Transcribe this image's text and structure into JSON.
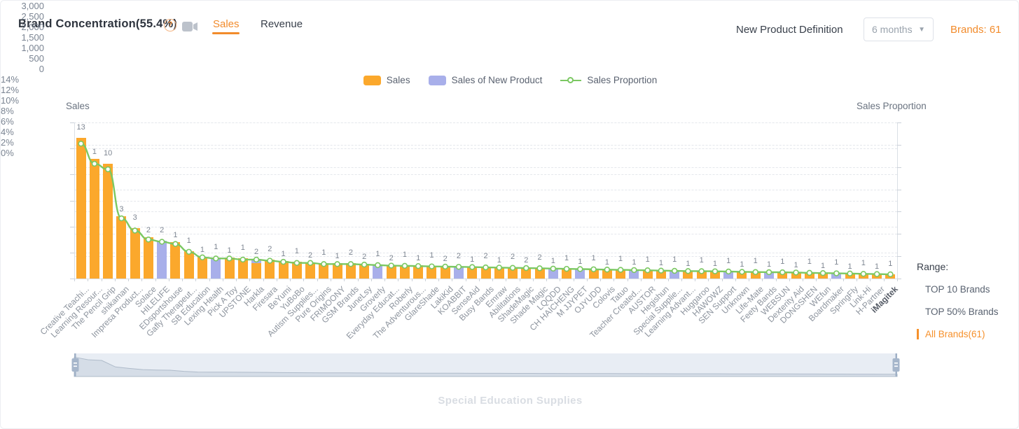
{
  "header": {
    "title": "Brand Concentration(55.4%)",
    "help_glyph": "?",
    "tabs": [
      {
        "label": "Sales",
        "active": true
      },
      {
        "label": "Revenue",
        "active": false
      }
    ],
    "new_product_definition_label": "New Product Definition",
    "dropdown_value": "6 months",
    "dropdown_caret": "▼",
    "brands_count_label": "Brands: 61"
  },
  "legend": [
    {
      "label": "Sales",
      "type": "bar",
      "color": "#FBA82C"
    },
    {
      "label": "Sales of New Product",
      "type": "bar",
      "color": "#A8AFEA"
    },
    {
      "label": "Sales Proportion",
      "type": "line",
      "color": "#7BC862"
    }
  ],
  "chart_data": {
    "type": "bar",
    "title": "",
    "ylabel_left": "Sales",
    "ylabel_right": "Sales Proportion",
    "ylim_left": [
      0,
      3000
    ],
    "ylim_right": [
      0,
      14
    ],
    "y_ticks_left": [
      "3,000",
      "2,500",
      "2,000",
      "1,500",
      "1,000",
      "500",
      "0"
    ],
    "y_ticks_right": [
      "14%",
      "12%",
      "10%",
      "8%",
      "6%",
      "4%",
      "2%",
      "0%"
    ],
    "grid": "dashed-horizontal",
    "legend_position": "top-center",
    "emphasized_category": "iMagitek",
    "categories": [
      "Creative Teachi...",
      "Learning Resour...",
      "The Pencil Grip",
      "shikaman",
      "Impresa Product...",
      "Solace",
      "HILELIFE",
      "EDsportshouse",
      "Gafly Therapeut...",
      "SB Education",
      "Lexing Health",
      "Pick A Toy",
      "UPSTONE",
      "Harkla",
      "Firesara",
      "BeYumi",
      "YuBoBo",
      "Autism Supplies...",
      "Pure Origins",
      "FRIMOONY",
      "GSM Brands",
      "JuneLsy",
      "Groverly",
      "Everyday Educat...",
      "Roberly",
      "The Adventurous...",
      "GlareShade",
      "LakiKid",
      "KOABBIT",
      "SenseAid",
      "Busy Bands",
      "Emraw",
      "Abilitations",
      "ShadeMagic",
      "Shade Magic",
      "LQQDD",
      "CH HAICHENG",
      "M JJYPET",
      "OJYUDD",
      "Colovis",
      "Tatuo",
      "Teacher Created...",
      "AUSTOR",
      "Hegishun",
      "Special Supplie...",
      "Learning Advant...",
      "Huggaroo",
      "HAWOWZ",
      "SEN Support",
      "Unknown",
      "Life-Mate",
      "Feety Bands",
      "WEBSUN",
      "Dexterity Aid",
      "DONGSHEN",
      "WEfun",
      "Boardmaker",
      "SpringFly",
      "Link-Hi",
      "H-Partner",
      "iMagitek"
    ],
    "series": [
      {
        "name": "Sales",
        "type": "bar",
        "color": "#FBA82C",
        "values": [
          2700,
          2300,
          2200,
          1200,
          970,
          790,
          730,
          700,
          530,
          420,
          410,
          400,
          390,
          380,
          360,
          330,
          320,
          310,
          300,
          295,
          290,
          280,
          270,
          260,
          255,
          250,
          245,
          240,
          235,
          230,
          225,
          220,
          215,
          210,
          205,
          200,
          195,
          190,
          185,
          180,
          175,
          170,
          165,
          160,
          155,
          150,
          148,
          145,
          140,
          135,
          130,
          128,
          125,
          120,
          115,
          110,
          105,
          100,
          95,
          90,
          85
        ]
      },
      {
        "name": "Sales of New Product",
        "type": "bar",
        "color": "#A8AFEA",
        "values": [
          0,
          0,
          0,
          0,
          0,
          0,
          730,
          0,
          0,
          0,
          410,
          0,
          0,
          80,
          0,
          0,
          0,
          0,
          0,
          0,
          0,
          0,
          270,
          0,
          0,
          0,
          0,
          0,
          235,
          0,
          0,
          0,
          0,
          0,
          0,
          200,
          0,
          190,
          0,
          0,
          0,
          170,
          0,
          0,
          155,
          0,
          0,
          0,
          140,
          0,
          0,
          128,
          0,
          0,
          0,
          0,
          105,
          0,
          0,
          0,
          0
        ]
      },
      {
        "name": "Sales Proportion",
        "type": "line",
        "color": "#7BC862",
        "values": [
          12.1,
          10.3,
          9.8,
          5.4,
          4.3,
          3.5,
          3.3,
          3.1,
          2.4,
          1.9,
          1.8,
          1.8,
          1.7,
          1.7,
          1.6,
          1.5,
          1.4,
          1.4,
          1.3,
          1.3,
          1.3,
          1.25,
          1.2,
          1.16,
          1.14,
          1.12,
          1.09,
          1.07,
          1.05,
          1.03,
          1.0,
          0.98,
          0.96,
          0.94,
          0.92,
          0.89,
          0.87,
          0.85,
          0.83,
          0.8,
          0.78,
          0.76,
          0.74,
          0.71,
          0.69,
          0.67,
          0.66,
          0.65,
          0.63,
          0.6,
          0.58,
          0.57,
          0.56,
          0.54,
          0.51,
          0.49,
          0.47,
          0.45,
          0.42,
          0.4,
          0.38
        ]
      }
    ],
    "bar_labels": [
      13,
      1,
      10,
      3,
      3,
      2,
      2,
      1,
      1,
      1,
      1,
      1,
      1,
      2,
      2,
      1,
      1,
      2,
      1,
      1,
      2,
      2,
      1,
      2,
      1,
      1,
      1,
      2,
      2,
      1,
      2,
      1,
      2,
      2,
      2,
      1,
      1,
      1,
      1,
      1,
      1,
      1,
      1,
      1,
      1,
      1,
      1,
      1,
      1,
      1,
      1,
      1,
      1,
      1,
      1,
      1,
      1,
      1,
      1,
      1,
      1
    ]
  },
  "range_panel": {
    "title": "Range:",
    "options": [
      {
        "label": "TOP 10 Brands",
        "selected": false
      },
      {
        "label": "TOP 50% Brands",
        "selected": false
      },
      {
        "label": "All Brands(61)",
        "selected": true
      }
    ]
  },
  "watermark": "Special Education Supplies",
  "colors": {
    "bar_sales": "#FBA82C",
    "bar_new_product": "#A8AFEA",
    "line_proportion": "#7BC862",
    "accent_orange": "#F28B2B",
    "slider_track": "#E8EDF4",
    "slider_area": "#D5DDE7",
    "slider_handle": "#A6B6CB"
  }
}
